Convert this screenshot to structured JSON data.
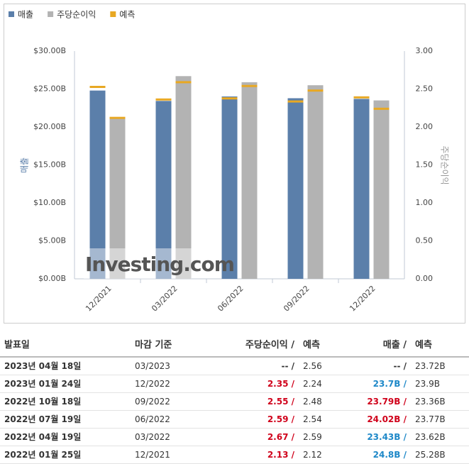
{
  "chart_data": {
    "type": "bar",
    "categories": [
      "12/2021",
      "03/2022",
      "06/2022",
      "09/2022",
      "12/2022"
    ],
    "series": [
      {
        "name": "매출",
        "color": "#5b7faa",
        "values": [
          24.8,
          23.43,
          24.02,
          23.79,
          23.7
        ]
      },
      {
        "name": "주당순이익",
        "color": "#b3b3b3",
        "axis": "y2",
        "values": [
          2.13,
          2.67,
          2.59,
          2.55,
          2.35
        ]
      }
    ],
    "forecast": {
      "name": "예측",
      "color": "#e8a823",
      "values": [
        25.28,
        23.62,
        23.77,
        23.36,
        23.9
      ],
      "y2_values": [
        2.12,
        2.59,
        2.54,
        2.48,
        2.24
      ]
    },
    "ylabel": "매출",
    "y2label": "주당순이익",
    "ylim": [
      0,
      30
    ],
    "yticks": [
      {
        "value": 0,
        "label": "$0.00B"
      },
      {
        "value": 5,
        "label": "$5.00B"
      },
      {
        "value": 10,
        "label": "$10.00B"
      },
      {
        "value": 15,
        "label": "$15.00B"
      },
      {
        "value": 20,
        "label": "$20.00B"
      },
      {
        "value": 25,
        "label": "$25.00B"
      },
      {
        "value": 30,
        "label": "$30.00B"
      }
    ],
    "y2lim": [
      0,
      3
    ],
    "y2ticks": [
      {
        "value": 0,
        "label": "0.00"
      },
      {
        "value": 0.5,
        "label": "0.50"
      },
      {
        "value": 1,
        "label": "1.00"
      },
      {
        "value": 1.5,
        "label": "1.50"
      },
      {
        "value": 2,
        "label": "2.00"
      },
      {
        "value": 2.5,
        "label": "2.50"
      },
      {
        "value": 3,
        "label": "3.00"
      }
    ],
    "grid": false,
    "watermark": "Investing.com"
  },
  "table": {
    "headers": [
      "발표일",
      "마감 기준",
      "주당순이익 /",
      "예측",
      "매출 /",
      "예측"
    ],
    "rows": [
      [
        "2023년 04월 18일",
        "03/2023",
        "-- /",
        "2.56",
        "-- /",
        "23.72B"
      ],
      [
        "2023년 01월 24일",
        "12/2022",
        "2.35 /",
        "2.24",
        "23.7B /",
        "23.9B"
      ],
      [
        "2022년 10월 18일",
        "09/2022",
        "2.55 /",
        "2.48",
        "23.79B /",
        "23.36B"
      ],
      [
        "2022년 07월 19일",
        "06/2022",
        "2.59 /",
        "2.54",
        "24.02B /",
        "23.77B"
      ],
      [
        "2022년 04월 19일",
        "03/2022",
        "2.67 /",
        "2.59",
        "23.43B /",
        "23.62B"
      ],
      [
        "2022년 01월 25일",
        "12/2021",
        "2.13 /",
        "2.12",
        "24.8B /",
        "25.28B"
      ]
    ]
  }
}
